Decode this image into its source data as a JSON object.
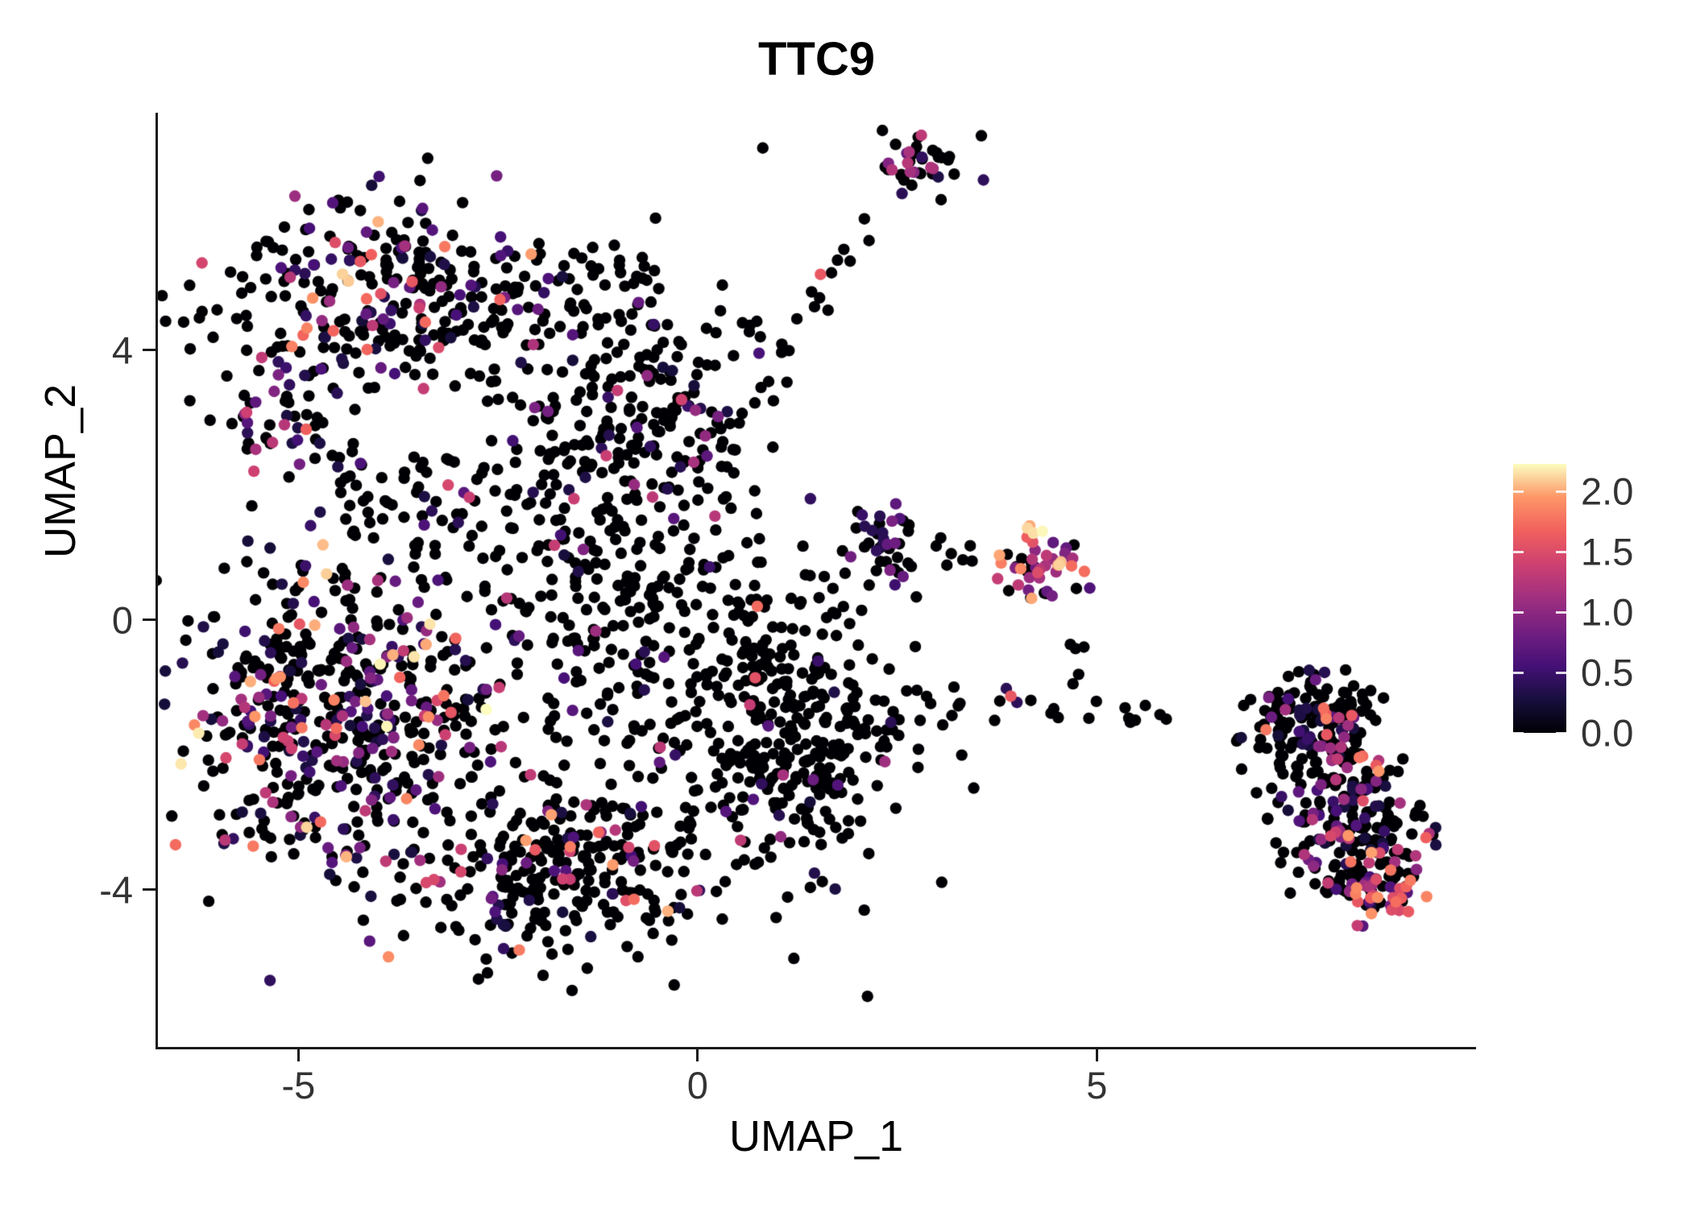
{
  "chart_data": {
    "type": "scatter",
    "subtype": "umap-feature-plot",
    "title": "TTC9",
    "xlabel": "UMAP_1",
    "ylabel": "UMAP_2",
    "xlim": [
      -6.77,
      9.75
    ],
    "ylim": [
      -6.33,
      7.52
    ],
    "x_ticks": [
      "-5",
      "0",
      "5"
    ],
    "x_tick_values": [
      -5,
      0,
      5
    ],
    "y_ticks": [
      "4",
      "0",
      "-4"
    ],
    "y_tick_values": [
      4,
      0,
      -4
    ],
    "grid": false,
    "legend_position": "right",
    "point_radius": 7.2,
    "seed": 20240613,
    "points_representation": "gaussian-cluster-approximation",
    "colorbar": {
      "min": 0,
      "max": 2.23,
      "tick_labels": [
        "2.0",
        "1.5",
        "1.0",
        "0.5",
        "0.0"
      ],
      "tick_values": [
        2.0,
        1.5,
        1.0,
        0.5,
        0.0
      ],
      "colormap": "magma",
      "stops": [
        "#000004",
        "#180F3E",
        "#451077",
        "#721F81",
        "#9F2F7F",
        "#CD4071",
        "#F1605D",
        "#FD9567",
        "#FCFDBF"
      ]
    },
    "clusters": [
      {
        "name": "top-left-core",
        "kind": "blob",
        "cx": -3.79,
        "cy": 4.78,
        "sx": 1.06,
        "sy": 0.72,
        "n": 300,
        "expr_frac": 0.3,
        "vmin": 0.25,
        "vpow": 2,
        "vrange": 1.9
      },
      {
        "name": "top-left-right-extension",
        "kind": "blob",
        "cx": -0.76,
        "cy": 3.34,
        "sx": 0.91,
        "sy": 1.01,
        "n": 260,
        "expr_frac": 0.12,
        "vmin": 0.25,
        "vpow": 2,
        "vrange": 1.5
      },
      {
        "name": "top-left-left-rim",
        "kind": "blob",
        "cx": -5.1,
        "cy": 3.04,
        "sx": 0.45,
        "sy": 0.48,
        "n": 60,
        "expr_frac": 0.45,
        "vmin": 0.3,
        "vpow": 2,
        "vrange": 1.6
      },
      {
        "name": "neck",
        "kind": "blob",
        "cx": -3.69,
        "cy": 1.67,
        "sx": 0.71,
        "sy": 0.6,
        "n": 70,
        "expr_frac": 0.18,
        "vmin": 0.25,
        "vpow": 2,
        "vrange": 1.4
      },
      {
        "name": "left-mid-dense",
        "kind": "blob",
        "cx": -4.49,
        "cy": -1.31,
        "sx": 0.96,
        "sy": 1.13,
        "n": 520,
        "expr_frac": 0.38,
        "vmin": 0.25,
        "vpow": 2,
        "vrange": 2.0
      },
      {
        "name": "center-sparse",
        "kind": "blob",
        "cx": -0.86,
        "cy": 0.12,
        "sx": 0.96,
        "sy": 1.19,
        "n": 260,
        "expr_frac": 0.08,
        "vmin": 0.25,
        "vpow": 2,
        "vrange": 1.3
      },
      {
        "name": "bottom-center",
        "kind": "blob",
        "cx": -1.77,
        "cy": -3.64,
        "sx": 0.96,
        "sy": 0.72,
        "n": 300,
        "expr_frac": 0.18,
        "vmin": 0.25,
        "vpow": 2,
        "vrange": 1.8
      },
      {
        "name": "right-lobe",
        "kind": "blob",
        "cx": 1.26,
        "cy": -1.61,
        "sx": 0.76,
        "sy": 1.01,
        "n": 330,
        "expr_frac": 0.07,
        "vmin": 0.25,
        "vpow": 2,
        "vrange": 1.7
      },
      {
        "name": "mid-purple-clump",
        "kind": "blob",
        "cx": 2.32,
        "cy": 1.29,
        "sx": 0.22,
        "sy": 0.24,
        "n": 28,
        "expr_frac": 0.5,
        "vmin": 0.3,
        "vpow": 1.5,
        "vrange": 1.2
      },
      {
        "name": "mid-clump-tail",
        "kind": "blob",
        "cx": 2.27,
        "cy": 0.66,
        "sx": 0.4,
        "sy": 0.21,
        "n": 14,
        "expr_frac": 0.1,
        "vmin": 0.3,
        "vpow": 2,
        "vrange": 1.0
      },
      {
        "name": "bright-cluster",
        "kind": "blob",
        "cx": 4.39,
        "cy": 0.84,
        "sx": 0.26,
        "sy": 0.29,
        "n": 50,
        "expr_frac": 0.72,
        "vmin": 0.6,
        "vpow": 1,
        "vrange": 1.63
      },
      {
        "name": "bright-connector",
        "kind": "line",
        "x1": 2.68,
        "y1": 1.07,
        "x2": 3.79,
        "y2": 0.84,
        "jitter": 0.12,
        "n": 8,
        "expr_frac": 0.05,
        "vmin": 0.3,
        "vpow": 2,
        "vrange": 1.0
      },
      {
        "name": "bright-south-strays",
        "kind": "line",
        "x1": 4.29,
        "y1": 0.12,
        "x2": 4.9,
        "y2": -1.19,
        "jitter": 0.15,
        "n": 6,
        "expr_frac": 0.1,
        "vmin": 0.3,
        "vpow": 2,
        "vrange": 1.0
      },
      {
        "name": "top-trail",
        "kind": "line",
        "x1": 0.35,
        "y1": 2.99,
        "x2": 2.22,
        "y2": 5.85,
        "jitter": 0.13,
        "n": 14,
        "expr_frac": 0.15,
        "vmin": 0.3,
        "vpow": 2,
        "vrange": 1.4
      },
      {
        "name": "top-small-cluster",
        "kind": "blob",
        "cx": 2.78,
        "cy": 6.69,
        "sx": 0.3,
        "sy": 0.26,
        "n": 40,
        "expr_frac": 0.3,
        "vmin": 0.3,
        "vpow": 2,
        "vrange": 1.3
      },
      {
        "name": "right-chain",
        "kind": "line",
        "x1": 2.83,
        "y1": -1.25,
        "x2": 6.21,
        "y2": -1.49,
        "jitter": 0.14,
        "n": 22,
        "expr_frac": 0.08,
        "vmin": 0.3,
        "vpow": 1.5,
        "vrange": 1.5
      },
      {
        "name": "right-cluster-upper",
        "kind": "blob",
        "cx": 7.73,
        "cy": -1.43,
        "sx": 0.45,
        "sy": 0.33,
        "n": 150,
        "expr_frac": 0.22,
        "vmin": 0.25,
        "vpow": 2,
        "vrange": 1.7
      },
      {
        "name": "right-cluster-mid",
        "kind": "blob",
        "cx": 7.98,
        "cy": -2.45,
        "sx": 0.4,
        "sy": 0.36,
        "n": 80,
        "expr_frac": 0.25,
        "vmin": 0.25,
        "vpow": 2,
        "vrange": 1.8
      },
      {
        "name": "right-cluster-lower",
        "kind": "blob",
        "cx": 8.23,
        "cy": -3.34,
        "sx": 0.45,
        "sy": 0.5,
        "n": 150,
        "expr_frac": 0.28,
        "vmin": 0.25,
        "vpow": 2,
        "vrange": 1.8
      },
      {
        "name": "right-cluster-tip",
        "kind": "blob",
        "cx": 8.64,
        "cy": -4.0,
        "sx": 0.25,
        "sy": 0.21,
        "n": 45,
        "expr_frac": 0.6,
        "vmin": 0.5,
        "vpow": 1.2,
        "vrange": 1.5
      }
    ]
  }
}
